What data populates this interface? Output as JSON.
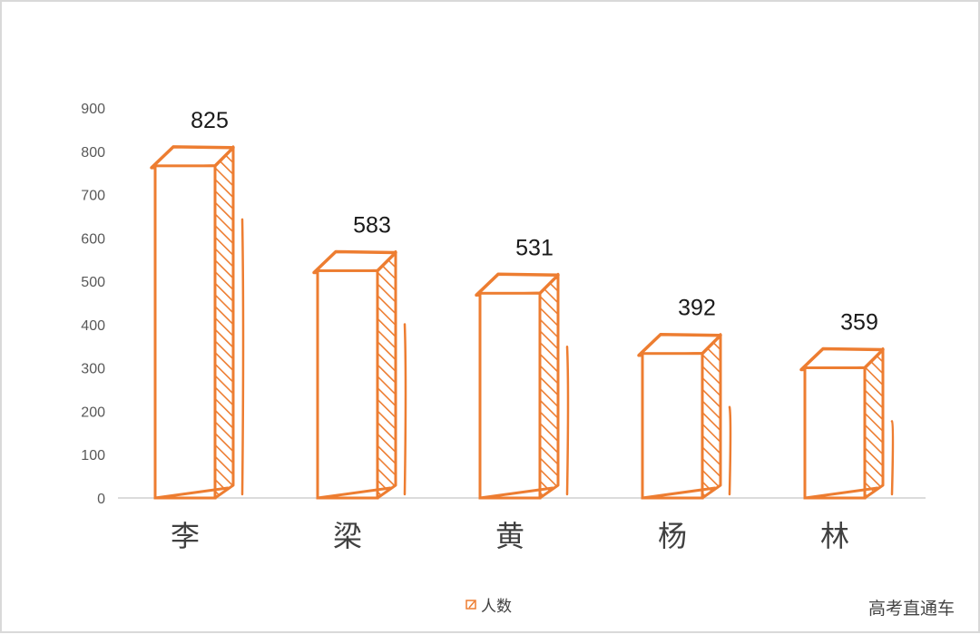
{
  "chart_data": {
    "type": "bar",
    "style": "hand-drawn 3D sketch bars with hatched side faces",
    "categories": [
      "李",
      "梁",
      "黄",
      "杨",
      "林"
    ],
    "series": [
      {
        "name": "人数",
        "values": [
          825,
          583,
          531,
          392,
          359
        ]
      }
    ],
    "data_labels": [
      "825",
      "583",
      "531",
      "392",
      "359"
    ],
    "y_ticks": [
      "0",
      "100",
      "200",
      "300",
      "400",
      "500",
      "600",
      "700",
      "800",
      "900"
    ],
    "ylim": [
      0,
      900
    ],
    "grid": false,
    "legend_position": "bottom-center",
    "color": "#ED7D31"
  },
  "watermark": "高考直通车"
}
